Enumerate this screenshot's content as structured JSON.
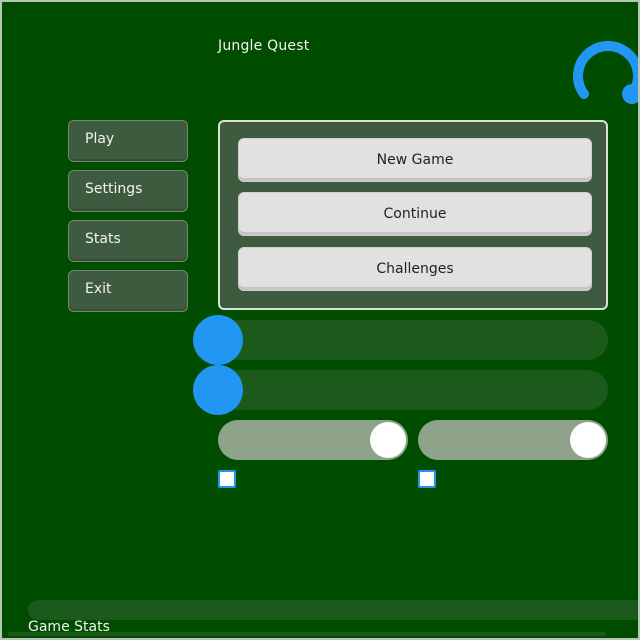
{
  "app": {
    "title": "Jungle Quest"
  },
  "menu": {
    "items": [
      {
        "label": "Play"
      },
      {
        "label": "Settings"
      },
      {
        "label": "Stats"
      },
      {
        "label": "Exit"
      }
    ]
  },
  "panel": {
    "buttons": [
      {
        "label": "New Game"
      },
      {
        "label": "Continue"
      },
      {
        "label": "Challenges"
      }
    ]
  },
  "controls": {
    "sliders": [
      {
        "value": 0
      },
      {
        "value": 0
      }
    ],
    "toggles": [
      {
        "on": true
      },
      {
        "on": true
      }
    ],
    "checkboxes": [
      {
        "checked": false
      },
      {
        "checked": false
      }
    ]
  },
  "bottom": {
    "stats_label": "Game Stats"
  },
  "colors": {
    "background": "#004d00",
    "accent": "#2196f3",
    "panel": "#3f5b3f",
    "button": "#e1e1e1"
  },
  "icons": {
    "spinner": "loading-spinner-icon"
  }
}
